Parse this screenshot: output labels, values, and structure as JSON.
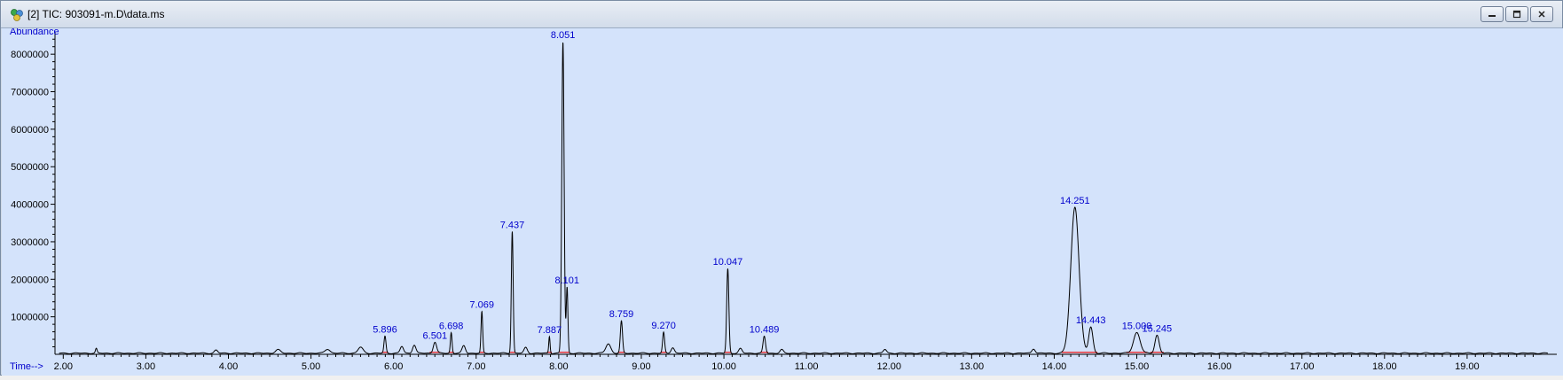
{
  "window": {
    "title": "[2] TIC: 903091-m.D\\data.ms",
    "controls": [
      "minimize",
      "restore",
      "close"
    ]
  },
  "chart_data": {
    "type": "line",
    "xlabel": "Time-->",
    "ylabel": "Abundance",
    "xlim": [
      1.9,
      20.0
    ],
    "ylim": [
      0,
      8500000
    ],
    "xticks": [
      "2.00",
      "3.00",
      "4.00",
      "5.00",
      "6.00",
      "7.00",
      "8.00",
      "9.00",
      "10.00",
      "11.00",
      "12.00",
      "13.00",
      "14.00",
      "15.00",
      "16.00",
      "17.00",
      "18.00",
      "19.00"
    ],
    "yticks": [
      "1000000",
      "2000000",
      "3000000",
      "4000000",
      "5000000",
      "6000000",
      "7000000",
      "8000000"
    ],
    "baseline": 30000,
    "peaks": [
      {
        "label": "5.896",
        "t": 5.896,
        "height": 450000,
        "width": 0.012
      },
      {
        "label": "6.501",
        "t": 6.501,
        "height": 300000,
        "width": 0.02
      },
      {
        "label": "6.698",
        "t": 6.698,
        "height": 550000,
        "width": 0.01
      },
      {
        "label": "7.069",
        "t": 7.069,
        "height": 1100000,
        "width": 0.01
      },
      {
        "label": "7.437",
        "t": 7.437,
        "height": 3250000,
        "width": 0.011
      },
      {
        "label": "7.887",
        "t": 7.887,
        "height": 450000,
        "width": 0.008
      },
      {
        "label": "8.051",
        "t": 8.051,
        "height": 8300000,
        "width": 0.014
      },
      {
        "label": "8.101",
        "t": 8.101,
        "height": 1750000,
        "width": 0.01
      },
      {
        "label": "8.759",
        "t": 8.759,
        "height": 850000,
        "width": 0.013
      },
      {
        "label": "9.270",
        "t": 9.27,
        "height": 550000,
        "width": 0.012
      },
      {
        "label": "10.047",
        "t": 10.047,
        "height": 2250000,
        "width": 0.013
      },
      {
        "label": "10.489",
        "t": 10.489,
        "height": 450000,
        "width": 0.015
      },
      {
        "label": "14.251",
        "t": 14.251,
        "height": 3900000,
        "width": 0.05
      },
      {
        "label": "14.443",
        "t": 14.443,
        "height": 700000,
        "width": 0.025
      },
      {
        "label": "15.000",
        "t": 15.0,
        "height": 550000,
        "width": 0.04
      },
      {
        "label": "15.245",
        "t": 15.245,
        "height": 480000,
        "width": 0.025
      }
    ],
    "minor_peaks": [
      {
        "t": 2.4,
        "height": 120000,
        "width": 0.01
      },
      {
        "t": 3.85,
        "height": 80000,
        "width": 0.02
      },
      {
        "t": 4.6,
        "height": 90000,
        "width": 0.03
      },
      {
        "t": 5.2,
        "height": 110000,
        "width": 0.03
      },
      {
        "t": 5.6,
        "height": 160000,
        "width": 0.03
      },
      {
        "t": 6.1,
        "height": 180000,
        "width": 0.02
      },
      {
        "t": 6.25,
        "height": 220000,
        "width": 0.02
      },
      {
        "t": 6.85,
        "height": 200000,
        "width": 0.02
      },
      {
        "t": 7.6,
        "height": 150000,
        "width": 0.02
      },
      {
        "t": 8.6,
        "height": 250000,
        "width": 0.03
      },
      {
        "t": 9.38,
        "height": 150000,
        "width": 0.02
      },
      {
        "t": 10.2,
        "height": 120000,
        "width": 0.02
      },
      {
        "t": 10.7,
        "height": 90000,
        "width": 0.02
      },
      {
        "t": 11.95,
        "height": 100000,
        "width": 0.02
      },
      {
        "t": 13.75,
        "height": 120000,
        "width": 0.02
      }
    ],
    "colors": {
      "background": "#d4e3fb",
      "trace": "#000000",
      "peak_label": "#0000cc",
      "axis_label": "#0000cc",
      "integration_marks": "#e8383d",
      "axis": "#000000"
    }
  }
}
